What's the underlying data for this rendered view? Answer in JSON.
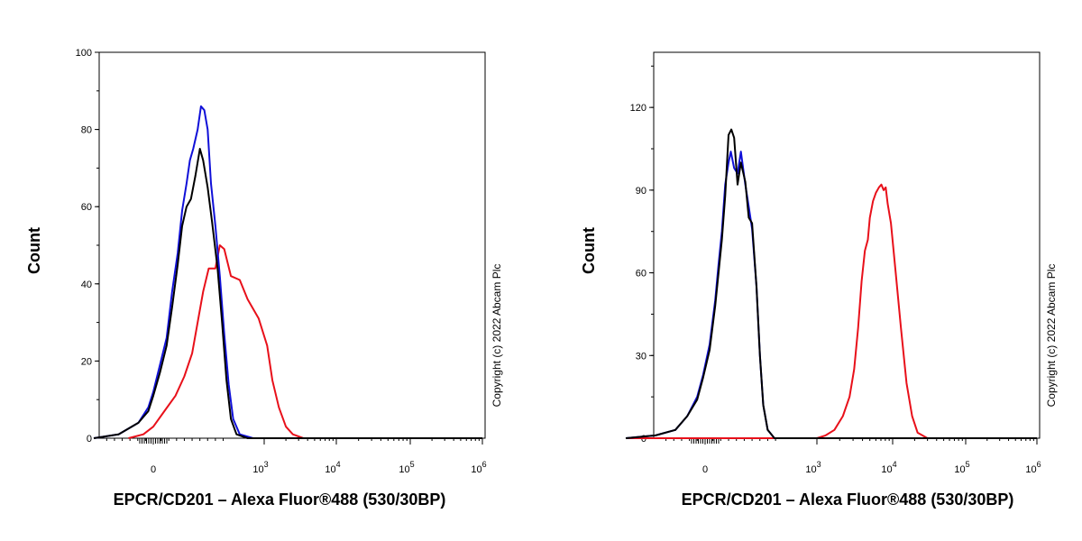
{
  "chart_data": [
    {
      "type": "line",
      "xlabel": "EPCR/CD201 – Alexa Fluor®488 (530/30BP)",
      "ylabel": "Count",
      "xscale": "biexponential",
      "ylim": [
        0,
        100
      ],
      "yticks": [
        0,
        20,
        40,
        60,
        80,
        100
      ],
      "ytick_labels": [
        "0",
        "20",
        "40",
        "60",
        "80",
        "100"
      ],
      "xticks": [
        {
          "value": 0,
          "base": "0",
          "exp": ""
        },
        {
          "value": 1000,
          "base": "10",
          "exp": "3"
        },
        {
          "value": 10000,
          "base": "10",
          "exp": "4"
        },
        {
          "value": 100000,
          "base": "10",
          "exp": "5"
        },
        {
          "value": 1000000,
          "base": "10",
          "exp": "6"
        }
      ],
      "annotation": "Copyright (c) 2022 Abcam Plc",
      "colors": {
        "red": "#e8101a",
        "blue": "#1010d8",
        "black": "#000000"
      },
      "series": [
        {
          "color": "red",
          "points": [
            [
              -250,
              0
            ],
            [
              -100,
              1
            ],
            [
              0,
              3
            ],
            [
              100,
              7
            ],
            [
              200,
              11
            ],
            [
              280,
              16
            ],
            [
              350,
              22
            ],
            [
              400,
              30
            ],
            [
              450,
              38
            ],
            [
              500,
              44
            ],
            [
              560,
              44
            ],
            [
              600,
              50
            ],
            [
              640,
              49
            ],
            [
              700,
              42
            ],
            [
              780,
              41
            ],
            [
              850,
              36
            ],
            [
              950,
              31
            ],
            [
              1100,
              24
            ],
            [
              1300,
              15
            ],
            [
              1600,
              8
            ],
            [
              2000,
              3
            ],
            [
              2500,
              1
            ],
            [
              3500,
              0
            ],
            [
              1000000,
              0
            ]
          ]
        },
        {
          "color": "blue",
          "points": [
            [
              -600,
              0
            ],
            [
              -350,
              1
            ],
            [
              -150,
              4
            ],
            [
              -50,
              8
            ],
            [
              0,
              12
            ],
            [
              60,
              19
            ],
            [
              120,
              26
            ],
            [
              170,
              38
            ],
            [
              220,
              48
            ],
            [
              260,
              59
            ],
            [
              300,
              66
            ],
            [
              330,
              72
            ],
            [
              360,
              75
            ],
            [
              400,
              80
            ],
            [
              430,
              86
            ],
            [
              460,
              85
            ],
            [
              490,
              80
            ],
            [
              520,
              66
            ],
            [
              560,
              55
            ],
            [
              600,
              42
            ],
            [
              640,
              27
            ],
            [
              680,
              14
            ],
            [
              720,
              5
            ],
            [
              780,
              1
            ],
            [
              900,
              0
            ],
            [
              1000000,
              0
            ]
          ]
        },
        {
          "color": "black",
          "points": [
            [
              -600,
              0
            ],
            [
              -350,
              1
            ],
            [
              -150,
              4
            ],
            [
              -50,
              7
            ],
            [
              0,
              11
            ],
            [
              60,
              17
            ],
            [
              120,
              24
            ],
            [
              170,
              34
            ],
            [
              220,
              45
            ],
            [
              260,
              55
            ],
            [
              300,
              60
            ],
            [
              340,
              62
            ],
            [
              380,
              68
            ],
            [
              420,
              75
            ],
            [
              450,
              72
            ],
            [
              490,
              65
            ],
            [
              530,
              56
            ],
            [
              580,
              44
            ],
            [
              620,
              30
            ],
            [
              660,
              15
            ],
            [
              700,
              5
            ],
            [
              750,
              1
            ],
            [
              850,
              0
            ],
            [
              1000000,
              0
            ]
          ]
        }
      ]
    },
    {
      "type": "line",
      "xlabel": "EPCR/CD201 – Alexa Fluor®488 (530/30BP)",
      "ylabel": "Count",
      "xscale": "biexponential",
      "ylim": [
        0,
        140
      ],
      "yticks": [
        0,
        30,
        60,
        90,
        120
      ],
      "ytick_labels": [
        "0",
        "30",
        "60",
        "90",
        "120"
      ],
      "xticks": [
        {
          "value": 0,
          "base": "0",
          "exp": ""
        },
        {
          "value": 1000,
          "base": "10",
          "exp": "3"
        },
        {
          "value": 10000,
          "base": "10",
          "exp": "4"
        },
        {
          "value": 100000,
          "base": "10",
          "exp": "5"
        },
        {
          "value": 1000000,
          "base": "10",
          "exp": "6"
        }
      ],
      "annotation": "Copyright (c) 2022 Abcam Plc",
      "colors": {
        "red": "#e8101a",
        "blue": "#1010d8",
        "black": "#000000"
      },
      "series": [
        {
          "color": "red",
          "points": [
            [
              -800,
              0
            ],
            [
              1000,
              0
            ],
            [
              1300,
              1
            ],
            [
              1700,
              3
            ],
            [
              2200,
              8
            ],
            [
              2700,
              15
            ],
            [
              3100,
              25
            ],
            [
              3500,
              40
            ],
            [
              3900,
              57
            ],
            [
              4300,
              68
            ],
            [
              4700,
              72
            ],
            [
              5000,
              80
            ],
            [
              5500,
              86
            ],
            [
              6000,
              89
            ],
            [
              6600,
              91
            ],
            [
              7100,
              92
            ],
            [
              7600,
              90
            ],
            [
              8100,
              91
            ],
            [
              8600,
              85
            ],
            [
              9500,
              78
            ],
            [
              11000,
              60
            ],
            [
              13000,
              40
            ],
            [
              15500,
              20
            ],
            [
              18500,
              8
            ],
            [
              22000,
              2
            ],
            [
              30000,
              0
            ],
            [
              1000000,
              0
            ]
          ]
        },
        {
          "color": "blue",
          "points": [
            [
              -800,
              0
            ],
            [
              -500,
              1
            ],
            [
              -300,
              3
            ],
            [
              -180,
              8
            ],
            [
              -80,
              15
            ],
            [
              -20,
              23
            ],
            [
              40,
              34
            ],
            [
              90,
              50
            ],
            [
              120,
              63
            ],
            [
              150,
              75
            ],
            [
              180,
              92
            ],
            [
              210,
              100
            ],
            [
              230,
              104
            ],
            [
              260,
              98
            ],
            [
              290,
              96
            ],
            [
              320,
              104
            ],
            [
              360,
              92
            ],
            [
              390,
              84
            ],
            [
              420,
              76
            ],
            [
              460,
              55
            ],
            [
              490,
              30
            ],
            [
              520,
              12
            ],
            [
              560,
              3
            ],
            [
              620,
              0
            ],
            [
              1000000,
              0
            ]
          ]
        },
        {
          "color": "black",
          "points": [
            [
              -800,
              0
            ],
            [
              -500,
              1
            ],
            [
              -300,
              3
            ],
            [
              -180,
              8
            ],
            [
              -80,
              14
            ],
            [
              -20,
              22
            ],
            [
              40,
              32
            ],
            [
              90,
              48
            ],
            [
              120,
              60
            ],
            [
              150,
              72
            ],
            [
              180,
              88
            ],
            [
              210,
              110
            ],
            [
              235,
              112
            ],
            [
              260,
              109
            ],
            [
              290,
              92
            ],
            [
              320,
              100
            ],
            [
              360,
              93
            ],
            [
              390,
              80
            ],
            [
              420,
              78
            ],
            [
              460,
              55
            ],
            [
              490,
              30
            ],
            [
              520,
              12
            ],
            [
              560,
              3
            ],
            [
              620,
              0
            ],
            [
              1000000,
              0
            ]
          ]
        }
      ]
    }
  ]
}
